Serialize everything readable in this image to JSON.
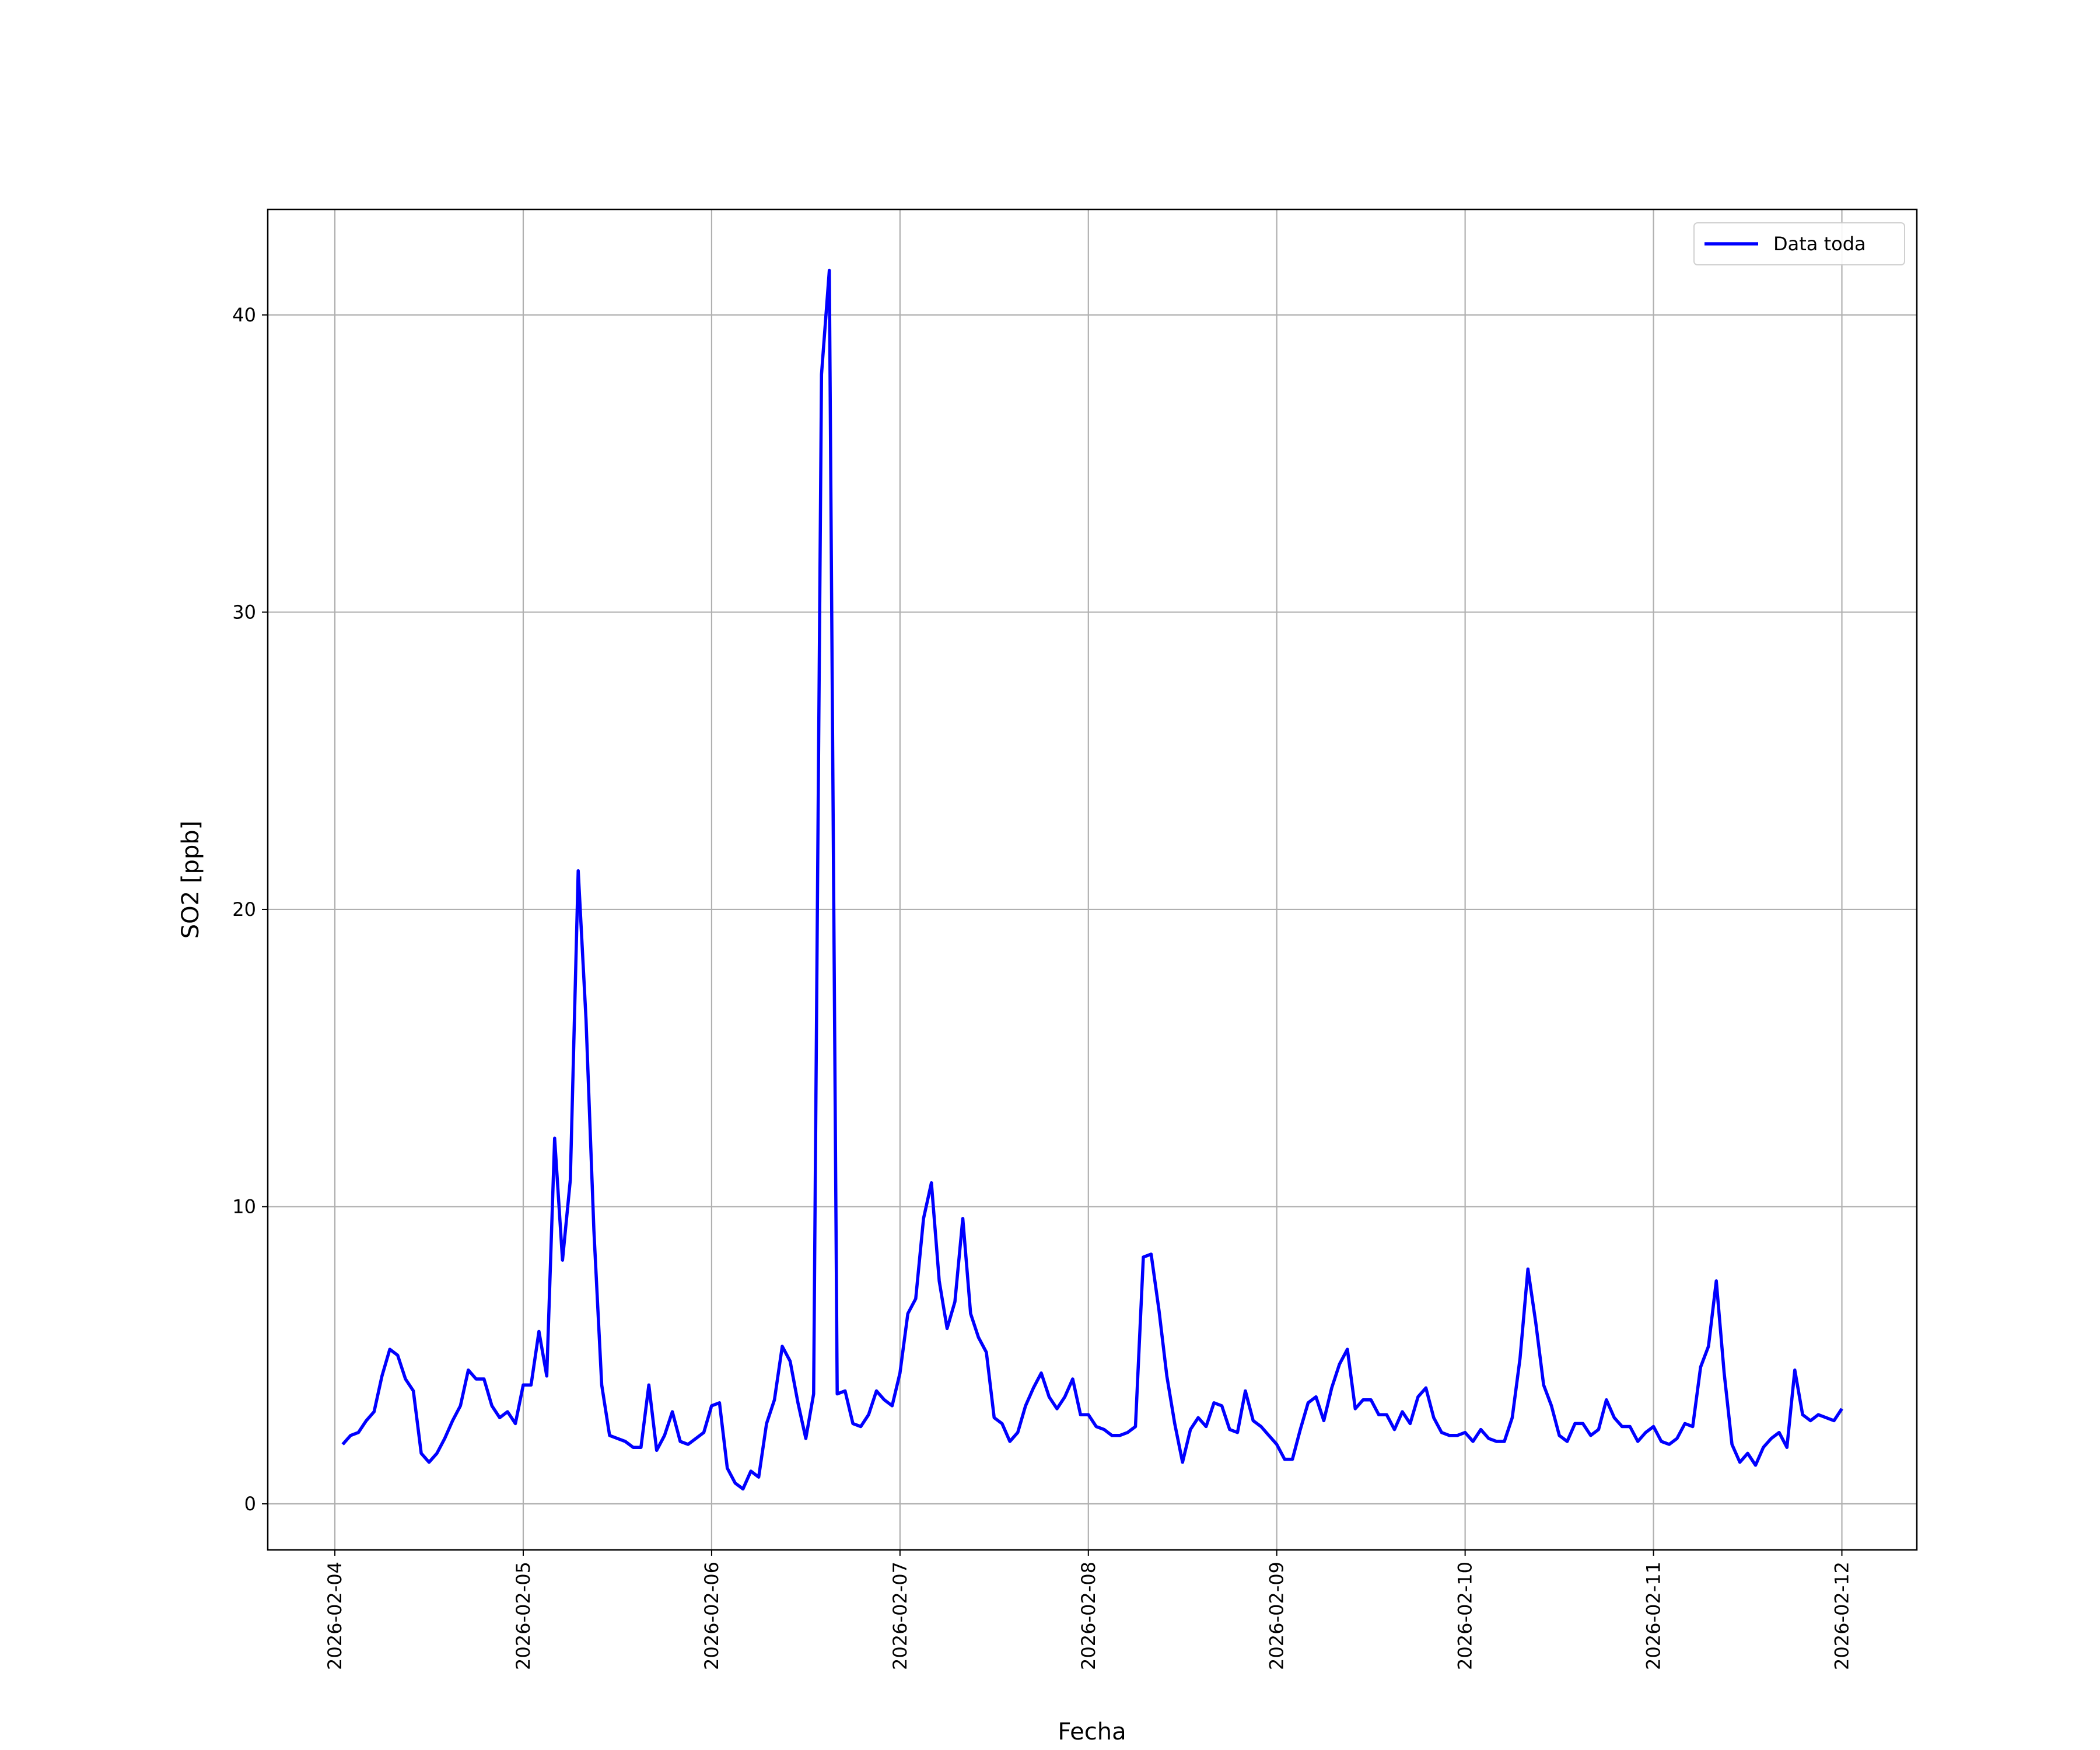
{
  "chart_data": {
    "type": "line",
    "xlabel": "Fecha",
    "ylabel": "SO2 [ppb]",
    "x": [
      "2026-02-04 01:00",
      "2026-02-04 02:00",
      "2026-02-04 03:00",
      "2026-02-04 04:00",
      "2026-02-04 05:00",
      "2026-02-04 06:00",
      "2026-02-04 07:00",
      "2026-02-04 08:00",
      "2026-02-04 09:00",
      "2026-02-04 10:00",
      "2026-02-04 11:00",
      "2026-02-04 12:00",
      "2026-02-04 13:00",
      "2026-02-04 14:00",
      "2026-02-04 15:00",
      "2026-02-04 16:00",
      "2026-02-04 17:00",
      "2026-02-04 18:00",
      "2026-02-04 19:00",
      "2026-02-04 20:00",
      "2026-02-04 21:00",
      "2026-02-04 22:00",
      "2026-02-04 23:00",
      "2026-02-05 00:00",
      "2026-02-05 01:00",
      "2026-02-05 02:00",
      "2026-02-05 03:00",
      "2026-02-05 04:00",
      "2026-02-05 05:00",
      "2026-02-05 06:00",
      "2026-02-05 07:00",
      "2026-02-05 08:00",
      "2026-02-05 09:00",
      "2026-02-05 10:00",
      "2026-02-05 11:00",
      "2026-02-05 12:00",
      "2026-02-05 13:00",
      "2026-02-05 14:00",
      "2026-02-05 15:00",
      "2026-02-05 16:00",
      "2026-02-05 17:00",
      "2026-02-05 18:00",
      "2026-02-05 19:00",
      "2026-02-05 20:00",
      "2026-02-05 21:00",
      "2026-02-05 22:00",
      "2026-02-05 23:00",
      "2026-02-06 00:00",
      "2026-02-06 01:00",
      "2026-02-06 02:00",
      "2026-02-06 03:00",
      "2026-02-06 04:00",
      "2026-02-06 05:00",
      "2026-02-06 06:00",
      "2026-02-06 07:00",
      "2026-02-06 08:00",
      "2026-02-06 09:00",
      "2026-02-06 10:00",
      "2026-02-06 11:00",
      "2026-02-06 12:00",
      "2026-02-06 13:00",
      "2026-02-06 14:00",
      "2026-02-06 15:00",
      "2026-02-06 16:00",
      "2026-02-06 17:00",
      "2026-02-06 18:00",
      "2026-02-06 19:00",
      "2026-02-06 20:00",
      "2026-02-06 21:00",
      "2026-02-06 22:00",
      "2026-02-06 23:00",
      "2026-02-07 00:00",
      "2026-02-07 01:00",
      "2026-02-07 02:00",
      "2026-02-07 03:00",
      "2026-02-07 04:00",
      "2026-02-07 05:00",
      "2026-02-07 06:00",
      "2026-02-07 07:00",
      "2026-02-07 08:00",
      "2026-02-07 09:00",
      "2026-02-07 10:00",
      "2026-02-07 11:00",
      "2026-02-07 12:00",
      "2026-02-07 13:00",
      "2026-02-07 14:00",
      "2026-02-07 15:00",
      "2026-02-07 16:00",
      "2026-02-07 17:00",
      "2026-02-07 18:00",
      "2026-02-07 19:00",
      "2026-02-07 20:00",
      "2026-02-07 21:00",
      "2026-02-07 22:00",
      "2026-02-07 23:00",
      "2026-02-08 00:00",
      "2026-02-08 01:00",
      "2026-02-08 02:00",
      "2026-02-08 03:00",
      "2026-02-08 04:00",
      "2026-02-08 05:00",
      "2026-02-08 06:00",
      "2026-02-08 07:00",
      "2026-02-08 08:00",
      "2026-02-08 09:00",
      "2026-02-08 10:00",
      "2026-02-08 11:00",
      "2026-02-08 12:00",
      "2026-02-08 13:00",
      "2026-02-08 14:00",
      "2026-02-08 15:00",
      "2026-02-08 16:00",
      "2026-02-08 17:00",
      "2026-02-08 18:00",
      "2026-02-08 19:00",
      "2026-02-08 20:00",
      "2026-02-08 21:00",
      "2026-02-08 22:00",
      "2026-02-08 23:00",
      "2026-02-09 00:00",
      "2026-02-09 01:00",
      "2026-02-09 02:00",
      "2026-02-09 03:00",
      "2026-02-09 04:00",
      "2026-02-09 05:00",
      "2026-02-09 06:00",
      "2026-02-09 07:00",
      "2026-02-09 08:00",
      "2026-02-09 09:00",
      "2026-02-09 10:00",
      "2026-02-09 11:00",
      "2026-02-09 12:00",
      "2026-02-09 13:00",
      "2026-02-09 14:00",
      "2026-02-09 15:00",
      "2026-02-09 16:00",
      "2026-02-09 17:00",
      "2026-02-09 18:00",
      "2026-02-09 19:00",
      "2026-02-09 20:00",
      "2026-02-09 21:00",
      "2026-02-09 22:00",
      "2026-02-09 23:00",
      "2026-02-10 00:00",
      "2026-02-10 01:00",
      "2026-02-10 02:00",
      "2026-02-10 03:00",
      "2026-02-10 04:00",
      "2026-02-10 05:00",
      "2026-02-10 06:00",
      "2026-02-10 07:00",
      "2026-02-10 08:00",
      "2026-02-10 09:00",
      "2026-02-10 10:00",
      "2026-02-10 11:00",
      "2026-02-10 12:00",
      "2026-02-10 13:00",
      "2026-02-10 14:00",
      "2026-02-10 15:00",
      "2026-02-10 16:00",
      "2026-02-10 17:00",
      "2026-02-10 18:00",
      "2026-02-10 19:00",
      "2026-02-10 20:00",
      "2026-02-10 21:00",
      "2026-02-10 22:00",
      "2026-02-10 23:00",
      "2026-02-11 00:00",
      "2026-02-11 01:00",
      "2026-02-11 02:00",
      "2026-02-11 03:00",
      "2026-02-11 04:00",
      "2026-02-11 05:00",
      "2026-02-11 06:00",
      "2026-02-11 07:00",
      "2026-02-11 08:00",
      "2026-02-11 09:00",
      "2026-02-11 10:00",
      "2026-02-11 11:00",
      "2026-02-11 12:00",
      "2026-02-11 13:00",
      "2026-02-11 14:00",
      "2026-02-11 15:00",
      "2026-02-11 16:00",
      "2026-02-11 17:00",
      "2026-02-11 18:00",
      "2026-02-11 19:00",
      "2026-02-11 20:00",
      "2026-02-11 21:00",
      "2026-02-11 22:00",
      "2026-02-11 23:00",
      "2026-02-12 00:00"
    ],
    "series": [
      {
        "name": "Data toda",
        "color": "#0000ff",
        "values": [
          2.0,
          2.3,
          2.4,
          2.8,
          3.1,
          4.3,
          5.2,
          5.0,
          4.2,
          3.8,
          1.7,
          1.4,
          1.7,
          2.2,
          2.8,
          3.3,
          4.5,
          4.2,
          4.2,
          3.3,
          2.9,
          3.1,
          2.7,
          4.0,
          4.0,
          5.8,
          4.3,
          12.3,
          8.2,
          10.9,
          21.3,
          16.3,
          9.2,
          4.0,
          2.3,
          2.2,
          2.1,
          1.9,
          1.9,
          4.0,
          1.8,
          2.3,
          3.1,
          2.1,
          2.0,
          2.2,
          2.4,
          3.3,
          3.4,
          1.2,
          0.7,
          0.5,
          1.1,
          0.9,
          2.7,
          3.5,
          5.3,
          4.8,
          3.4,
          2.2,
          3.7,
          38.0,
          41.5,
          3.7,
          3.8,
          2.7,
          2.6,
          3.0,
          3.8,
          3.5,
          3.3,
          4.4,
          6.4,
          6.9,
          9.6,
          10.8,
          7.5,
          5.9,
          6.8,
          9.6,
          6.4,
          5.6,
          5.1,
          2.9,
          2.7,
          2.1,
          2.4,
          3.3,
          3.9,
          4.4,
          3.6,
          3.2,
          3.6,
          4.2,
          3.0,
          3.0,
          2.6,
          2.5,
          2.3,
          2.3,
          2.4,
          2.6,
          8.3,
          8.4,
          6.5,
          4.3,
          2.7,
          1.4,
          2.5,
          2.9,
          2.6,
          3.4,
          3.3,
          2.5,
          2.4,
          3.8,
          2.8,
          2.6,
          2.3,
          2.0,
          1.5,
          1.5,
          2.5,
          3.4,
          3.6,
          2.8,
          3.9,
          4.7,
          5.2,
          3.2,
          3.5,
          3.5,
          3.0,
          3.0,
          2.5,
          3.1,
          2.7,
          3.6,
          3.9,
          2.9,
          2.4,
          2.3,
          2.3,
          2.4,
          2.1,
          2.5,
          2.2,
          2.1,
          2.1,
          2.9,
          4.9,
          7.9,
          6.1,
          4.0,
          3.3,
          2.3,
          2.1,
          2.7,
          2.7,
          2.3,
          2.5,
          3.5,
          2.9,
          2.6,
          2.6,
          2.1,
          2.4,
          2.6,
          2.1,
          2.0,
          2.2,
          2.7,
          2.6,
          4.6,
          5.3,
          7.5,
          4.4,
          2.0,
          1.4,
          1.7,
          1.3,
          1.9,
          2.2,
          2.4,
          1.9,
          4.5,
          3.0,
          2.8,
          3.0,
          2.9,
          2.8,
          3.2
        ]
      }
    ],
    "xticks": [
      "2026-02-04",
      "2026-02-05",
      "2026-02-06",
      "2026-02-07",
      "2026-02-08",
      "2026-02-09",
      "2026-02-10",
      "2026-02-11",
      "2026-02-12"
    ],
    "ylim": [
      -1.55,
      43.55
    ],
    "yticks": [
      0,
      10,
      20,
      30,
      40
    ],
    "grid": true,
    "legend": "upper right"
  }
}
